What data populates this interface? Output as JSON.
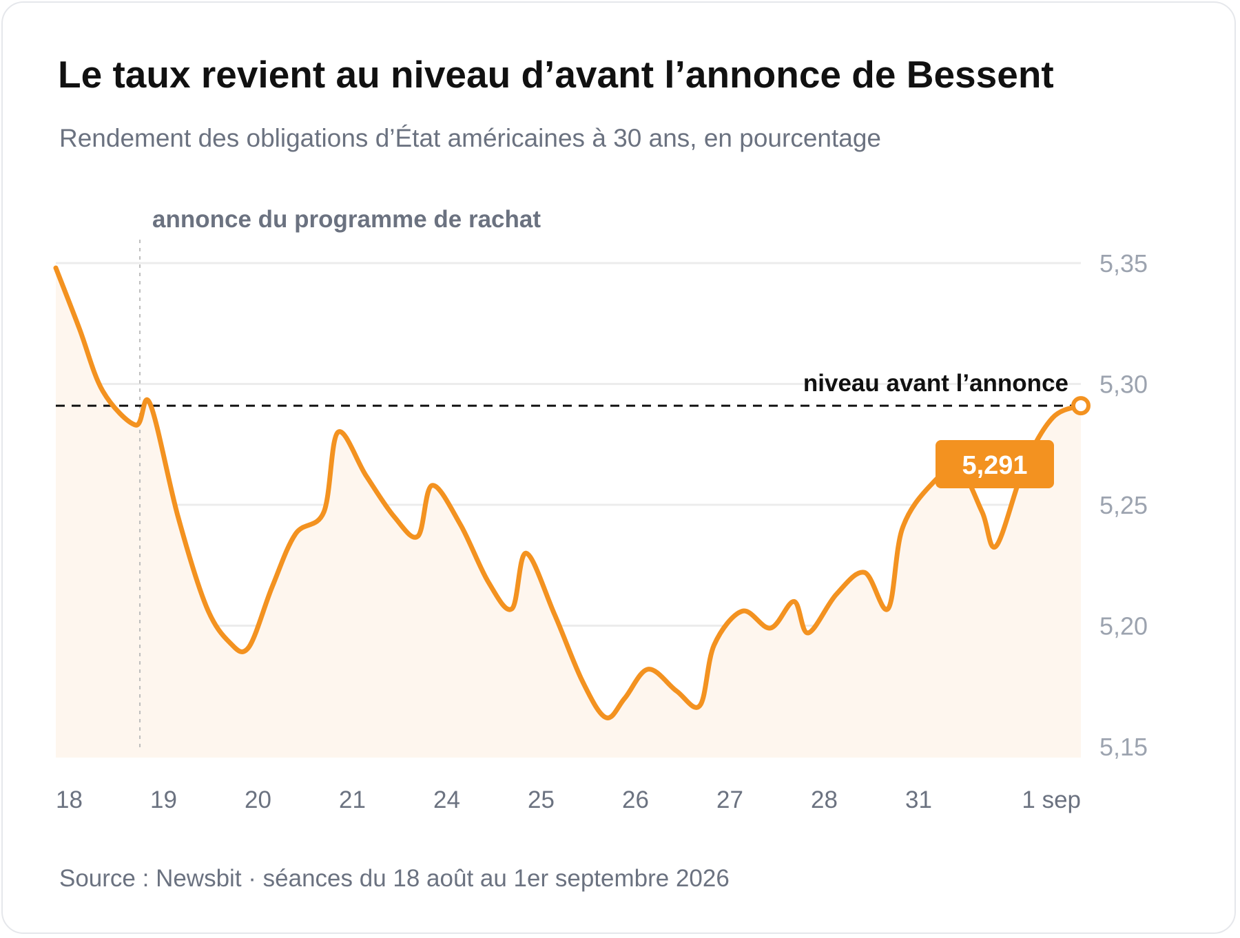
{
  "chart_data": {
    "type": "line",
    "title": "Le taux revient au niveau d’avant l’annonce de Bessent",
    "subtitle": "Rendement des obligations d’État américaines à 30 ans, en pourcentage",
    "source": "Source : Newsbit · séances du 18 août au 1er septembre 2026",
    "xlabel": "",
    "ylabel": "",
    "ylim": [
      5.146,
      5.35
    ],
    "y_ticks": [
      {
        "value": 5.35,
        "label": "5,35"
      },
      {
        "value": 5.3,
        "label": "5,30"
      },
      {
        "value": 5.25,
        "label": "5,25"
      },
      {
        "value": 5.2,
        "label": "5,20"
      },
      {
        "value": 5.15,
        "label": "5,15"
      }
    ],
    "x_ticks": [
      {
        "x": 0,
        "label": "18"
      },
      {
        "x": 1,
        "label": "19"
      },
      {
        "x": 2,
        "label": "20"
      },
      {
        "x": 3,
        "label": "21"
      },
      {
        "x": 4,
        "label": "24"
      },
      {
        "x": 5,
        "label": "25"
      },
      {
        "x": 6,
        "label": "26"
      },
      {
        "x": 7,
        "label": "27"
      },
      {
        "x": 8,
        "label": "28"
      },
      {
        "x": 9,
        "label": "31"
      },
      {
        "x": 10.9,
        "label": "1 sep"
      }
    ],
    "grid": true,
    "series": [
      {
        "color": "#f39220",
        "points": [
          [
            0.0,
            5.348
          ],
          [
            0.25,
            5.323
          ],
          [
            0.5,
            5.297
          ],
          [
            0.85,
            5.283
          ],
          [
            1.0,
            5.292
          ],
          [
            1.3,
            5.245
          ],
          [
            1.6,
            5.208
          ],
          [
            1.85,
            5.193
          ],
          [
            2.05,
            5.191
          ],
          [
            2.3,
            5.216
          ],
          [
            2.55,
            5.238
          ],
          [
            2.85,
            5.247
          ],
          [
            3.0,
            5.28
          ],
          [
            3.3,
            5.262
          ],
          [
            3.6,
            5.245
          ],
          [
            3.85,
            5.237
          ],
          [
            4.0,
            5.258
          ],
          [
            4.3,
            5.242
          ],
          [
            4.6,
            5.218
          ],
          [
            4.85,
            5.207
          ],
          [
            5.0,
            5.23
          ],
          [
            5.3,
            5.205
          ],
          [
            5.6,
            5.177
          ],
          [
            5.85,
            5.162
          ],
          [
            6.05,
            5.17
          ],
          [
            6.3,
            5.182
          ],
          [
            6.6,
            5.173
          ],
          [
            6.85,
            5.167
          ],
          [
            7.0,
            5.192
          ],
          [
            7.3,
            5.206
          ],
          [
            7.6,
            5.199
          ],
          [
            7.85,
            5.21
          ],
          [
            8.0,
            5.197
          ],
          [
            8.3,
            5.213
          ],
          [
            8.6,
            5.222
          ],
          [
            8.85,
            5.207
          ],
          [
            9.0,
            5.24
          ],
          [
            9.3,
            5.258
          ],
          [
            9.6,
            5.265
          ],
          [
            9.85,
            5.247
          ],
          [
            10.0,
            5.233
          ],
          [
            10.3,
            5.266
          ],
          [
            10.6,
            5.286
          ],
          [
            10.9,
            5.291
          ]
        ]
      }
    ],
    "reference_line": {
      "value": 5.291,
      "label": "niveau avant l’annonce",
      "color": "#111111",
      "style": "dashed"
    },
    "event_marker": {
      "x": 0.85,
      "label": "annonce du programme de rachat",
      "style": "dotted"
    },
    "last_value": {
      "value": 5.291,
      "label": "5,291",
      "color": "#f39220"
    }
  }
}
